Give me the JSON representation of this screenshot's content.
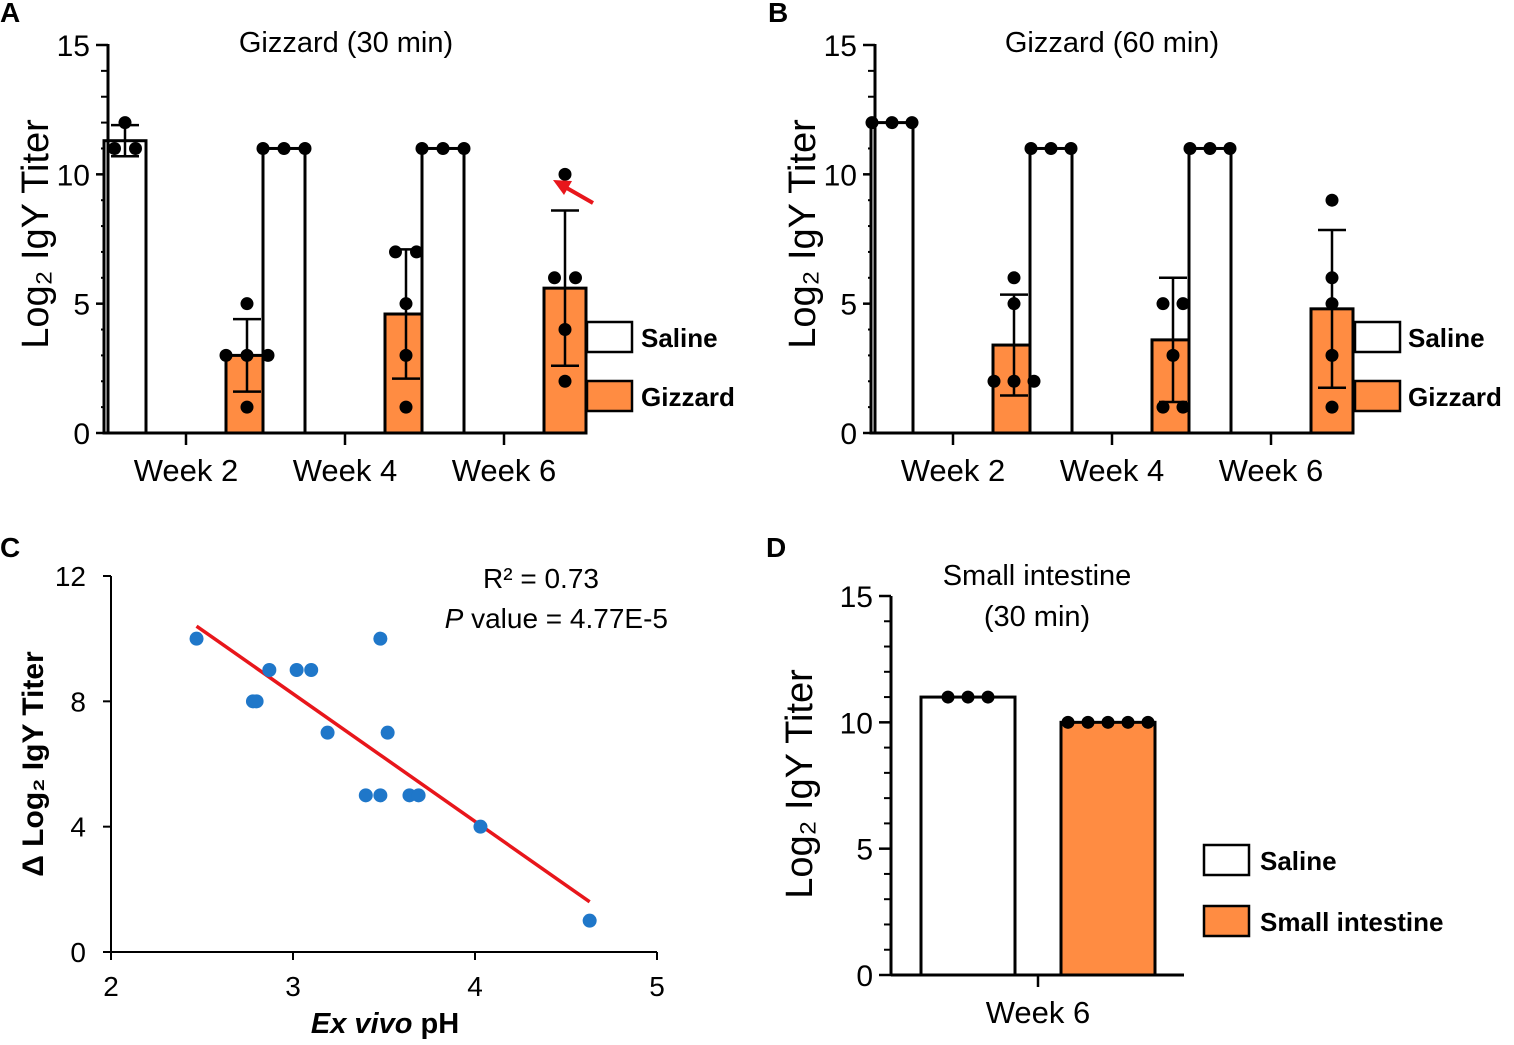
{
  "colors": {
    "saline_fill": "#ffffff",
    "treatment_fill": "#ff8c42",
    "scatter_point": "#1f77c9",
    "regression_line": "#e8161b",
    "arrow": "#e8161b",
    "ink": "#000000"
  },
  "chart_data": [
    {
      "panel": "A",
      "type": "bar",
      "title": "Gizzard (30 min)",
      "ylabel": "Log₂ IgY Titer",
      "ylim": [
        0,
        15
      ],
      "yticks": [
        0,
        5,
        10,
        15
      ],
      "categories": [
        "Week 2",
        "Week 4",
        "Week 6"
      ],
      "legend": [
        "Saline",
        "Gizzard"
      ],
      "series": [
        {
          "name": "Saline",
          "values": [
            11.3,
            11,
            11
          ],
          "sd": [
            0.6,
            0,
            0
          ],
          "points": [
            [
              12,
              11,
              11
            ],
            [
              11,
              11,
              11
            ],
            [
              11,
              11,
              11
            ]
          ]
        },
        {
          "name": "Gizzard",
          "values": [
            3.0,
            4.6,
            5.6
          ],
          "sd": [
            1.4,
            2.5,
            3.0
          ],
          "points": [
            [
              5,
              3,
              3,
              3,
              1
            ],
            [
              7,
              7,
              5,
              3,
              1
            ],
            [
              10,
              6,
              6,
              4,
              2
            ]
          ]
        }
      ],
      "annotation": "red arrow pointing at Week 6 Gizzard outlier (10)"
    },
    {
      "panel": "B",
      "type": "bar",
      "title": "Gizzard (60 min)",
      "ylabel": "Log₂ IgY Titer",
      "ylim": [
        0,
        15
      ],
      "yticks": [
        0,
        5,
        10,
        15
      ],
      "categories": [
        "Week 2",
        "Week 4",
        "Week 6"
      ],
      "legend": [
        "Saline",
        "Gizzard"
      ],
      "series": [
        {
          "name": "Saline",
          "values": [
            12,
            11,
            11
          ],
          "sd": [
            0,
            0,
            0
          ],
          "points": [
            [
              12,
              12,
              12
            ],
            [
              11,
              11,
              11
            ],
            [
              11,
              11,
              11
            ]
          ]
        },
        {
          "name": "Gizzard",
          "values": [
            3.4,
            3.6,
            4.8
          ],
          "sd": [
            1.95,
            2.4,
            3.05
          ],
          "points": [
            [
              6,
              5,
              2,
              2,
              2
            ],
            [
              5,
              5,
              3,
              1,
              1
            ],
            [
              9,
              6,
              5,
              3,
              1
            ]
          ]
        }
      ]
    },
    {
      "panel": "C",
      "type": "scatter",
      "xlabel_italic": "Ex vivo",
      "xlabel_rest": " pH",
      "ylabel": "Δ Log₂ IgY Titer",
      "xlim": [
        2,
        5
      ],
      "ylim": [
        0,
        12
      ],
      "xticks": [
        2,
        3,
        4,
        5
      ],
      "yticks": [
        0,
        4,
        8,
        12
      ],
      "x": [
        2.47,
        2.78,
        2.8,
        2.87,
        3.02,
        3.1,
        3.19,
        3.4,
        3.48,
        3.48,
        3.52,
        3.64,
        3.69,
        4.03,
        4.63
      ],
      "y": [
        10,
        8,
        8,
        9,
        9,
        9,
        7,
        5,
        5,
        10,
        7,
        5,
        5,
        4,
        1
      ],
      "regression": {
        "x": [
          2.47,
          4.63
        ],
        "y": [
          10.4,
          1.6
        ]
      },
      "r2_text": "R² = 0.73",
      "p_label": "P",
      "p_text": " value  = 4.77E-5"
    },
    {
      "panel": "D",
      "type": "bar",
      "title_line1": "Small intestine",
      "title_line2": "(30 min)",
      "ylabel": "Log₂ IgY Titer",
      "ylim": [
        0,
        15
      ],
      "yticks": [
        0,
        5,
        10,
        15
      ],
      "categories": [
        "Week 6"
      ],
      "legend": [
        "Saline",
        "Small intestine"
      ],
      "series": [
        {
          "name": "Saline",
          "values": [
            11
          ],
          "points": [
            [
              11,
              11,
              11
            ]
          ]
        },
        {
          "name": "Small intestine",
          "values": [
            10
          ],
          "points": [
            [
              10,
              10,
              10,
              10,
              10
            ]
          ]
        }
      ]
    }
  ]
}
